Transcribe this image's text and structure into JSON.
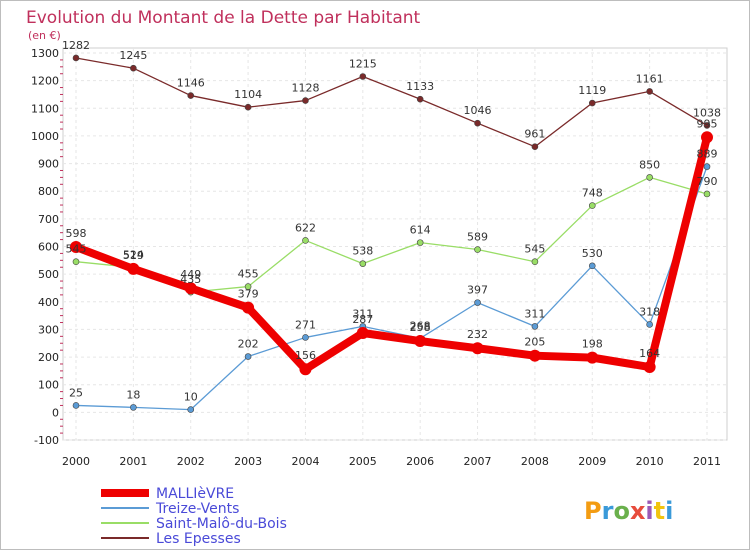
{
  "chart_data": {
    "type": "line",
    "title": "Evolution du Montant de la Dette par Habitant",
    "unit_label": "(en €)",
    "xlabel": "",
    "ylabel": "",
    "ylim": [
      -100,
      1300
    ],
    "yticks": [
      -100,
      0,
      100,
      200,
      300,
      400,
      500,
      600,
      700,
      800,
      900,
      1000,
      1100,
      1200,
      1300
    ],
    "categories": [
      "2000",
      "2001",
      "2002",
      "2003",
      "2004",
      "2005",
      "2006",
      "2007",
      "2008",
      "2009",
      "2010",
      "2011"
    ],
    "grid": true,
    "legend_position": "bottom-left",
    "series": [
      {
        "name": "Les Epesses",
        "color": "#7a2a2a",
        "values": [
          1282,
          1245,
          1146,
          1104,
          1128,
          1215,
          1133,
          1046,
          961,
          1119,
          1161,
          1038
        ]
      },
      {
        "name": "Saint-Malô-du-Bois",
        "color": "#99dd66",
        "values": [
          545,
          524,
          435,
          455,
          622,
          538,
          614,
          589,
          545,
          748,
          850,
          790
        ]
      },
      {
        "name": "Treize-Vents",
        "color": "#5b9bd5",
        "values": [
          25,
          18,
          10,
          202,
          271,
          311,
          268,
          397,
          311,
          530,
          318,
          889
        ]
      },
      {
        "name": "MALLIèVRE",
        "color": "#ee0000",
        "values": [
          598,
          519,
          449,
          379,
          156,
          287,
          258,
          232,
          205,
          198,
          164,
          995
        ]
      }
    ],
    "legend_order": [
      "MALLIèVRE",
      "Treize-Vents",
      "Saint-Malô-du-Bois",
      "Les Epesses"
    ]
  },
  "brand": {
    "text": "Proxiti"
  }
}
